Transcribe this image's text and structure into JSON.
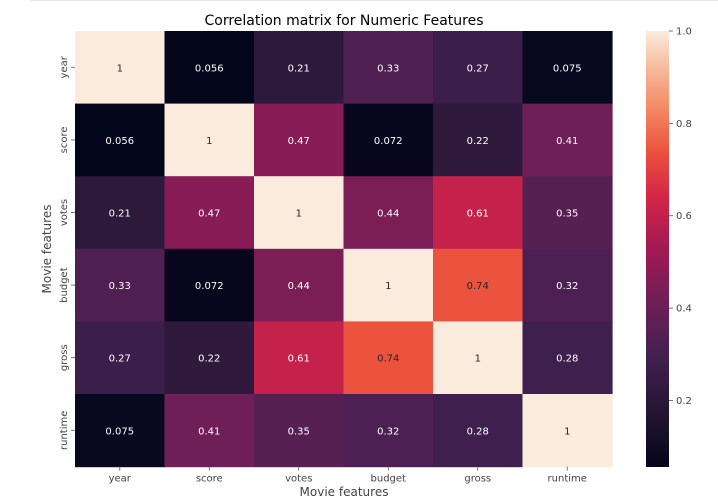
{
  "chart_data": {
    "type": "heatmap",
    "title": "Correlation matrix for Numeric Features",
    "xlabel": "Movie features",
    "ylabel": "Movie features",
    "x_categories": [
      "year",
      "score",
      "votes",
      "budget",
      "gross",
      "runtime"
    ],
    "y_categories": [
      "year",
      "score",
      "votes",
      "budget",
      "gross",
      "runtime"
    ],
    "values": [
      [
        1,
        0.056,
        0.21,
        0.33,
        0.27,
        0.075
      ],
      [
        0.056,
        1,
        0.47,
        0.072,
        0.22,
        0.41
      ],
      [
        0.21,
        0.47,
        1,
        0.44,
        0.61,
        0.35
      ],
      [
        0.33,
        0.072,
        0.44,
        1,
        0.74,
        0.32
      ],
      [
        0.27,
        0.22,
        0.61,
        0.74,
        1,
        0.28
      ],
      [
        0.075,
        0.41,
        0.35,
        0.32,
        0.28,
        1
      ]
    ],
    "annotations": [
      [
        "1",
        "0.056",
        "0.21",
        "0.33",
        "0.27",
        "0.075"
      ],
      [
        "0.056",
        "1",
        "0.47",
        "0.072",
        "0.22",
        "0.41"
      ],
      [
        "0.21",
        "0.47",
        "1",
        "0.44",
        "0.61",
        "0.35"
      ],
      [
        "0.33",
        "0.072",
        "0.44",
        "1",
        "0.74",
        "0.32"
      ],
      [
        "0.27",
        "0.22",
        "0.61",
        "0.74",
        "1",
        "0.28"
      ],
      [
        "0.075",
        "0.41",
        "0.35",
        "0.32",
        "0.28",
        "1"
      ]
    ],
    "colorbar": {
      "range": [
        0.056,
        1.0
      ],
      "ticks": [
        0.2,
        0.4,
        0.6,
        0.8,
        1.0
      ],
      "tick_labels": [
        "0.2",
        "0.4",
        "0.6",
        "0.8",
        "1.0"
      ]
    },
    "colormap": "rocket",
    "grid": false
  }
}
